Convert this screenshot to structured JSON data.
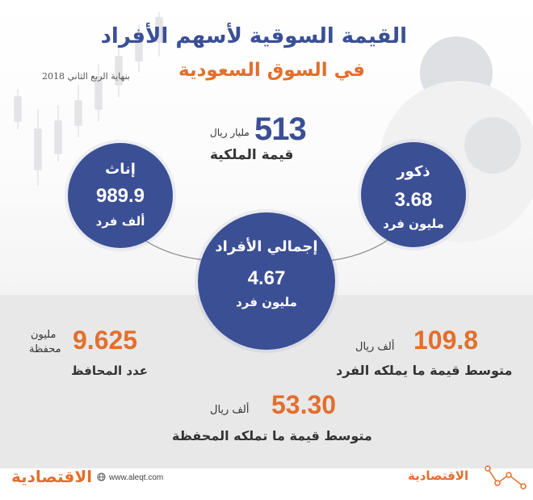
{
  "title": "القيمة السوقية لأسهم الأفراد",
  "subtitle": "في السوق السعودية",
  "period": "بنهاية الربع الثاني 2018",
  "ownership": {
    "value": "513",
    "unit": "مليار ريال",
    "label": "قيمة الملكية"
  },
  "female": {
    "label": "إناث",
    "value": "989.9",
    "unit": "ألف فرد"
  },
  "male": {
    "label": "ذكور",
    "value": "3.68",
    "unit": "مليون فرد"
  },
  "total_individuals": {
    "label": "إجمالي الأفراد",
    "value": "4.67",
    "unit": "مليون فرد"
  },
  "avg_individual": {
    "value": "109.8",
    "unit": "ألف ريال",
    "label": "متوسط قيمة ما يملكه الفرد"
  },
  "portfolios": {
    "value": "9.625",
    "unit_line1": "مليون",
    "unit_line2": "محفظة",
    "label": "عدد المحافظ"
  },
  "avg_portfolio": {
    "value": "53.30",
    "unit": "ألف ريال",
    "label": "متوسط قيمة ما تملكه المحفظة"
  },
  "footer": {
    "logo_left": "الاقتصادية",
    "url": "www.aleqt.com",
    "logo_right": "الاقتصادية"
  },
  "colors": {
    "primary_blue": "#3b4f95",
    "accent_orange": "#e26f2c",
    "panel_gray": "#e8e8e9"
  }
}
